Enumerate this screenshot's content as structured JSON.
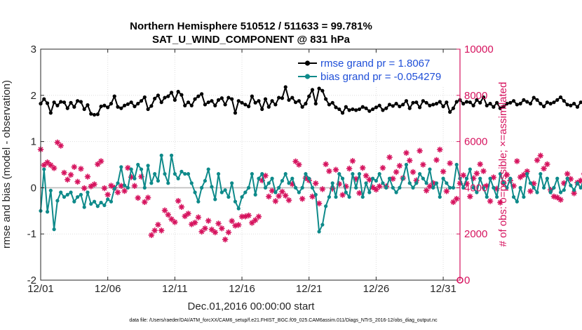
{
  "chart_data": {
    "type": "line",
    "title": "Northern Hemisphere 510512 / 511633 = 99.781%",
    "subtitle": "SAT_U_WIND_COMPONENT @ 831 hPa",
    "xlabel": "Dec.01,2016 00:00:00 start",
    "ylabel_left": "rmse and bias (model - observation)",
    "ylabel_right": "# of obs: o=possible; ×=assimilated",
    "footnote": "data file: /Users/raeder/DAI/ATM_forcXX/CAM6_setup/f.e21.FHIST_BGC.f09_025.CAM6assim.011/Diags_NTrS_2016-12/obs_diag_output.nc",
    "x_ticks": [
      1,
      6,
      11,
      16,
      21,
      26,
      31
    ],
    "x_tick_labels": [
      "12/01",
      "12/06",
      "12/11",
      "12/16",
      "12/21",
      "12/26",
      "12/31"
    ],
    "xlim": [
      1,
      32.25
    ],
    "ylim_left": [
      -2,
      3
    ],
    "y_ticks_left": [
      -2,
      -1,
      0,
      1,
      2,
      3
    ],
    "y_tick_labels_left": [
      "-2",
      "-1",
      "0",
      "1",
      "2",
      "3"
    ],
    "ylim_right": [
      0,
      10000
    ],
    "y_ticks_right": [
      0,
      2000,
      4000,
      6000,
      8000,
      10000
    ],
    "y_tick_labels_right": [
      "0",
      "2000",
      "4000",
      "6000",
      "8000",
      "10000"
    ],
    "zero_line": 0,
    "legend_position": "top-right",
    "x_step_days": 0.25,
    "x_start": 1,
    "series": [
      {
        "name": "rmse grand pr = 1.8067",
        "axis": "left",
        "marker": "filled-circle",
        "color": "#000000",
        "values": [
          1.82,
          1.92,
          1.83,
          1.62,
          1.85,
          1.78,
          1.86,
          1.85,
          1.72,
          1.84,
          1.75,
          1.88,
          1.86,
          1.7,
          1.79,
          1.6,
          1.58,
          1.59,
          1.76,
          1.78,
          1.74,
          1.82,
          1.98,
          1.75,
          1.72,
          1.78,
          1.81,
          1.85,
          1.76,
          1.82,
          1.88,
          1.96,
          1.7,
          1.77,
          1.93,
          2.0,
          1.85,
          1.95,
          1.98,
          2.06,
          1.9,
          2.08,
          2.01,
          1.78,
          1.85,
          1.78,
          1.92,
          1.98,
          2.03,
          1.8,
          1.85,
          1.88,
          1.78,
          1.9,
          1.94,
          1.8,
          1.95,
          1.92,
          1.62,
          1.88,
          1.84,
          1.8,
          1.76,
          1.98,
          1.84,
          1.88,
          1.7,
          1.92,
          1.75,
          1.88,
          1.8,
          1.95,
          1.94,
          2.18,
          1.9,
          1.95,
          1.85,
          1.88,
          1.75,
          1.82,
          1.98,
          2.12,
          1.82,
          2.15,
          2.1,
          1.92,
          1.8,
          1.84,
          1.74,
          1.7,
          1.62,
          1.75,
          1.68,
          1.7,
          1.68,
          1.7,
          1.75,
          1.72,
          1.66,
          1.7,
          1.74,
          1.78,
          1.68,
          1.72,
          1.8,
          1.77,
          1.82,
          1.76,
          1.8,
          1.88,
          1.72,
          1.84,
          1.85,
          1.74,
          1.88,
          1.84,
          1.78,
          1.8,
          1.82,
          1.86,
          1.76,
          1.85,
          1.64,
          1.72,
          1.86,
          1.9,
          1.82,
          1.86,
          1.85,
          1.78,
          1.9,
          1.84,
          1.96,
          1.78,
          1.82,
          1.75,
          1.84,
          1.72,
          1.76,
          1.82,
          1.84,
          1.88,
          1.8,
          1.82,
          1.9,
          1.86,
          1.82,
          1.95,
          1.9,
          1.82,
          1.76,
          1.85,
          1.82,
          1.85,
          1.9,
          1.96,
          1.88,
          1.8,
          1.78,
          1.82,
          1.75,
          1.85,
          1.84,
          1.9,
          1.86,
          1.82,
          1.87,
          1.8,
          1.78,
          1.88,
          1.84,
          1.8,
          1.9,
          1.8,
          1.86,
          1.78,
          1.74,
          1.88,
          1.8,
          1.92,
          1.85,
          1.82,
          1.75,
          1.85,
          1.8,
          1.85,
          1.88,
          1.78,
          1.85,
          2.05,
          2.05
        ]
      },
      {
        "name": "bias grand pr = -0.054279",
        "axis": "left",
        "marker": "filled-circle",
        "color": "#0e8a8a",
        "values": [
          -0.5,
          0.4,
          -0.52,
          -0.06,
          -0.9,
          -0.28,
          -0.1,
          -0.2,
          -0.15,
          -0.1,
          -0.3,
          -0.2,
          -0.15,
          -0.42,
          -0.1,
          -0.35,
          -0.3,
          -0.4,
          -0.32,
          -0.38,
          -0.25,
          -0.3,
          -0.02,
          0.1,
          0.45,
          0.05,
          0.0,
          0.4,
          0.2,
          0.5,
          0.4,
          0.0,
          0.48,
          0.1,
          0.3,
          0.15,
          0.7,
          0.3,
          0.1,
          0.7,
          0.3,
          0.2,
          0.35,
          0.3,
          0.3,
          0.1,
          -0.1,
          -0.3,
          0.0,
          0.15,
          0.4,
          0.02,
          -0.25,
          0.3,
          -0.1,
          -0.05,
          -0.2,
          0.1,
          -0.3,
          -0.45,
          -0.2,
          -0.1,
          0.0,
          0.3,
          -0.15,
          0.2,
          0.3,
          0.0,
          0.1,
          0.2,
          -0.1,
          0.0,
          0.15,
          0.3,
          0.1,
          0.2,
          0.0,
          -0.1,
          0.0,
          0.3,
          0.2,
          0.0,
          -0.15,
          -0.95,
          -0.8,
          -0.4,
          -0.2,
          0.1,
          -0.2,
          0.3,
          0.2,
          -0.1,
          -0.2,
          0.3,
          0.0,
          0.3,
          -0.2,
          0.1,
          -0.1,
          0.2,
          0.15,
          0.3,
          0.1,
          0.0,
          0.2,
          0.0,
          -0.1,
          0.0,
          0.2,
          0.5,
          0.1,
          0.0,
          0.1,
          0.3,
          0.2,
          0.1,
          0.4,
          0.0,
          0.1,
          -0.2,
          0.2,
          0.1,
          0.0,
          0.0,
          0.5,
          0.2,
          0.0,
          0.2,
          0.4,
          0.0,
          -0.1,
          0.2,
          0.0,
          -0.2,
          0.2,
          0.0,
          -0.2,
          0.3,
          0.1,
          0.0,
          0.2,
          -0.2,
          -0.3,
          0.0,
          -0.2,
          0.3,
          0.1,
          0.0,
          -0.1,
          0.3,
          0.0,
          0.2,
          -0.1,
          0.0,
          0.2,
          -0.1,
          -0.05,
          0.2,
          0.05,
          -0.05,
          0.1,
          0.0,
          0.2,
          0.0,
          0.1,
          -0.1,
          0.0,
          -0.2,
          0.1,
          0.0,
          0.2,
          0.1,
          0.0,
          0.15,
          0.3,
          0.0,
          0.1,
          -0.1,
          0.2,
          -0.15,
          -0.55,
          -0.25,
          -0.4,
          -0.2,
          -0.35,
          -0.3,
          -0.2,
          -0.35,
          -0.22,
          -0.15,
          -0.2,
          -0.2
        ]
      },
      {
        "name": "# of obs assimilated",
        "axis": "right",
        "marker": "asterisk",
        "color": "#d6135e",
        "values": [
          5660,
          4980,
          5100,
          4980,
          4850,
          5960,
          5820,
          4650,
          4350,
          4560,
          4900,
          4260,
          4820,
          3980,
          4480,
          4060,
          4150,
          5020,
          5150,
          3980,
          3700,
          4090,
          4000,
          3800,
          4080,
          3860,
          4860,
          4460,
          4080,
          3560,
          4480,
          3380,
          3570,
          1950,
          2150,
          2400,
          2150,
          3020,
          2830,
          2640,
          2510,
          3430,
          3170,
          2770,
          2880,
          2420,
          2490,
          2720,
          2100,
          2240,
          2570,
          2190,
          2070,
          2450,
          2240,
          1760,
          2070,
          2560,
          2360,
          2390,
          2750,
          2760,
          2800,
          2480,
          2600,
          2750,
          4320,
          4520,
          3620,
          3870,
          3420,
          3640,
          3830,
          3660,
          3460,
          4160,
          5140,
          5000,
          3520,
          4420,
          4320,
          3620,
          4190,
          3320,
          3940,
          5020,
          4720,
          3960,
          4780,
          4160,
          3690,
          4060,
          4830,
          5160,
          4380,
          3770,
          4860,
          4520,
          4350,
          4020,
          3920,
          4060,
          4860,
          4060,
          5320,
          4390,
          4680,
          4950,
          4420,
          5510,
          5180,
          4680,
          4320,
          5600,
          5000,
          3880,
          4060,
          4200,
          5200,
          5650,
          4700,
          3850,
          5060,
          3380,
          3520,
          4190,
          4540,
          4180,
          3620,
          4410,
          4620,
          5020,
          4720,
          4080,
          3420,
          4450,
          3960,
          3360,
          4200,
          4560,
          4310,
          4080,
          5150,
          4460,
          4560,
          4710,
          3850,
          4180,
          5190,
          5390,
          4830,
          5020,
          3910,
          3620,
          3580,
          3480,
          4200,
          4600,
          4380,
          3760,
          4220,
          4310,
          4600,
          4080,
          4290,
          5050,
          4810,
          4650,
          5360,
          4220,
          4370,
          4450,
          4810,
          4870,
          4480,
          4380,
          4080,
          5850,
          4950,
          3860,
          4020,
          4020,
          4660,
          5030,
          5920,
          3730,
          5180,
          4520,
          4600,
          4200,
          5820,
          6600,
          6120,
          5250,
          5420,
          5480
        ]
      }
    ],
    "possible_obs": {
      "name": "# of obs possible",
      "marker": "open-circle",
      "color": "#d6135e",
      "x_days": [
        32.25
      ],
      "values": [
        0
      ]
    }
  }
}
